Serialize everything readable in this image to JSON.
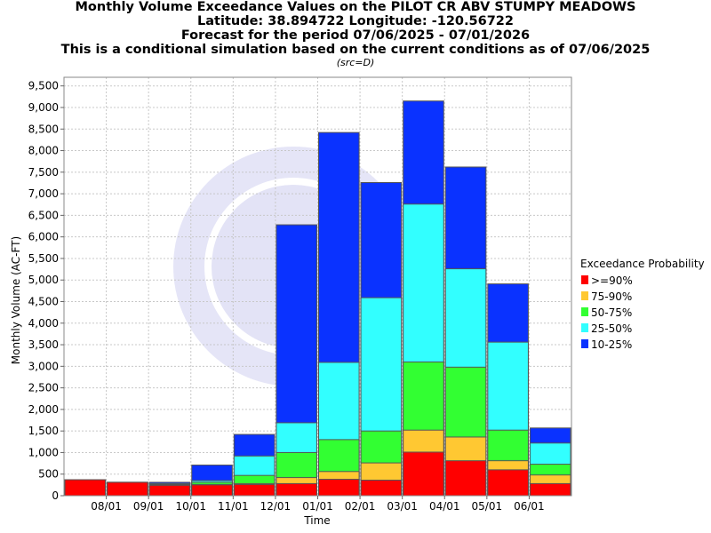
{
  "titles": [
    "Monthly Volume Exceedance Values on the PILOT CR ABV STUMPY MEADOWS",
    "Latitude: 38.894722 Longitude: -120.56722",
    "Forecast for the period 07/06/2025 - 07/01/2026",
    "This is a conditional simulation based on the current conditions as of 07/06/2025"
  ],
  "subtitle": "(src=D)",
  "colors": {
    ">=90%": "#ff0000",
    "75-90%": "#ffc832",
    "50-75%": "#32ff32",
    "25-50%": "#32ffff",
    "10-25%": "#0a32ff"
  },
  "chart_data": {
    "type": "bar",
    "stacked_cumulative": true,
    "xlabel": "Time",
    "ylabel": "Monthly Volume (AC-FT)",
    "ylim": [
      0,
      9700
    ],
    "yticks": [
      0,
      500,
      1000,
      1500,
      2000,
      2500,
      3000,
      3500,
      4000,
      4500,
      5000,
      5500,
      6000,
      6500,
      7000,
      7500,
      8000,
      8500,
      9000,
      9500
    ],
    "ytick_labels": [
      "0",
      "500",
      "1,000",
      "1,500",
      "2,000",
      "2,500",
      "3,000",
      "3,500",
      "4,000",
      "4,500",
      "5,000",
      "5,500",
      "6,000",
      "6,500",
      "7,000",
      "7,500",
      "8,000",
      "8,500",
      "9,000",
      "9,500"
    ],
    "xtick_labels": [
      "08/01",
      "09/01",
      "10/01",
      "11/01",
      "12/01",
      "01/01",
      "02/01",
      "03/01",
      "04/01",
      "05/01",
      "06/01"
    ],
    "categories": [
      "Jul 2025",
      "Aug 2025",
      "Sep 2025",
      "Oct 2025",
      "Nov 2025",
      "Dec 2025",
      "Jan 2026",
      "Feb 2026",
      "Mar 2026",
      "Apr 2026",
      "May 2026",
      "Jun 2026"
    ],
    "grid": true,
    "legend_title": "Exceedance Probability",
    "legend_position": "right",
    "series": [
      {
        "name": ">=90%",
        "values": [
          370,
          310,
          240,
          250,
          260,
          280,
          380,
          360,
          1010,
          810,
          600,
          280
        ]
      },
      {
        "name": "75-90%",
        "values": [
          370,
          310,
          250,
          260,
          280,
          420,
          560,
          760,
          1520,
          1360,
          810,
          480
        ]
      },
      {
        "name": "50-75%",
        "values": [
          370,
          310,
          260,
          310,
          470,
          1000,
          1300,
          1500,
          3100,
          2980,
          1520,
          730
        ]
      },
      {
        "name": "25-50%",
        "values": [
          370,
          310,
          280,
          350,
          920,
          1690,
          3090,
          4590,
          6760,
          5260,
          3560,
          1220
        ]
      },
      {
        "name": "10-25%",
        "values": [
          370,
          310,
          310,
          710,
          1420,
          6280,
          8420,
          7260,
          9150,
          7620,
          4910,
          1570
        ]
      }
    ]
  }
}
